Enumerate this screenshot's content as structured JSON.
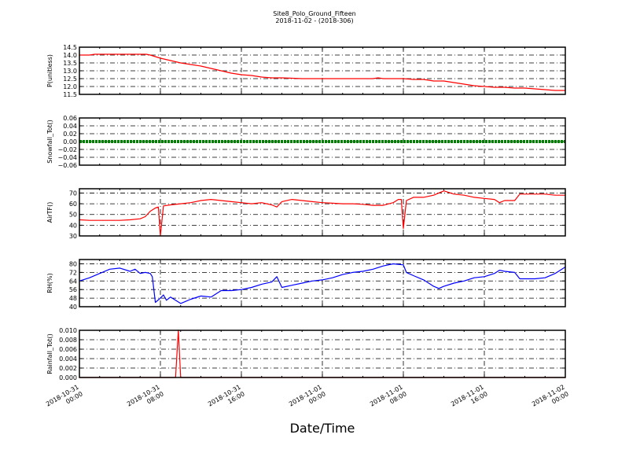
{
  "chart_data": {
    "type": "line",
    "title": "Site8_Polo_Ground_Fifteen",
    "subtitle": "2018-11-02 - (2018-306)",
    "xlabel": "Date/Time",
    "x_unit": "hours since 2018-10-31 00:00",
    "xlim": [
      0,
      48
    ],
    "x_ticks": [
      {
        "value": 0,
        "label": [
          "2018-10-31",
          "00:00"
        ]
      },
      {
        "value": 8,
        "label": [
          "2018-10-31",
          "08:00"
        ]
      },
      {
        "value": 16,
        "label": [
          "2018-10-31",
          "16:00"
        ]
      },
      {
        "value": 24,
        "label": [
          "2018-11-01",
          "00:00"
        ]
      },
      {
        "value": 32,
        "label": [
          "2018-11-01",
          "08:00"
        ]
      },
      {
        "value": 40,
        "label": [
          "2018-11-01",
          "16:00"
        ]
      },
      {
        "value": 48,
        "label": [
          "2018-11-02",
          "00:00"
        ]
      }
    ],
    "grid": true,
    "panels": [
      {
        "name": "p-unitless",
        "ylabel": "P(unitless)",
        "ylim": [
          11.5,
          14.5
        ],
        "yticks": [
          11.5,
          12.0,
          12.5,
          13.0,
          13.5,
          14.0,
          14.5
        ],
        "ytick_labels": [
          "11.5",
          "12.0",
          "12.5",
          "13.0",
          "13.5",
          "14.0",
          "14.5"
        ],
        "color": "#ff0000",
        "style": "line",
        "x": [
          0,
          1,
          1.5,
          2,
          4,
          6,
          6.6,
          7,
          8,
          9,
          10,
          11,
          12,
          13,
          14,
          15,
          16,
          17,
          18,
          19,
          20,
          22,
          24,
          26,
          28,
          29,
          29.5,
          30,
          32,
          33,
          34,
          35,
          36,
          37,
          38,
          39,
          40,
          41,
          42,
          43,
          44,
          45,
          46,
          47,
          48
        ],
        "y": [
          14.0,
          14.0,
          14.05,
          14.05,
          14.05,
          14.05,
          14.05,
          14.0,
          13.8,
          13.65,
          13.5,
          13.4,
          13.3,
          13.15,
          13.0,
          12.85,
          12.75,
          12.7,
          12.6,
          12.55,
          12.55,
          12.5,
          12.5,
          12.5,
          12.5,
          12.5,
          12.55,
          12.5,
          12.5,
          12.45,
          12.45,
          12.35,
          12.35,
          12.25,
          12.15,
          12.05,
          12.0,
          11.95,
          11.95,
          11.9,
          11.9,
          11.85,
          11.8,
          11.75,
          11.75
        ]
      },
      {
        "name": "snowfall-tot",
        "ylabel": "Snowfall_Tot()",
        "ylim": [
          -0.06,
          0.06
        ],
        "yticks": [
          -0.06,
          -0.04,
          -0.02,
          0.0,
          0.02,
          0.04,
          0.06
        ],
        "ytick_labels": [
          "−0.06",
          "−0.04",
          "−0.02",
          "0.00",
          "0.02",
          "0.04",
          "0.06"
        ],
        "color": "#008000",
        "style": "dotted-thick",
        "x": [
          0,
          48
        ],
        "y": [
          0,
          0
        ]
      },
      {
        "name": "airtf",
        "ylabel": "AirTF()",
        "ylim": [
          30,
          74
        ],
        "yticks": [
          30,
          40,
          50,
          60,
          70
        ],
        "ytick_labels": [
          "30",
          "40",
          "50",
          "60",
          "70"
        ],
        "color": "#ff0000",
        "style": "line",
        "x": [
          0,
          1,
          2,
          3,
          4,
          5,
          6,
          6.5,
          7,
          7.5,
          7.8,
          8,
          8.3,
          9,
          10,
          11,
          12,
          13,
          14,
          15,
          16,
          17,
          18,
          19,
          19.5,
          20,
          21,
          22,
          23,
          24,
          25,
          26,
          27,
          28,
          29,
          30,
          31,
          31.5,
          31.8,
          32,
          32.3,
          33,
          34,
          35,
          36,
          37,
          38,
          39,
          40,
          41,
          41.5,
          42,
          43,
          43.5,
          44,
          45,
          46,
          47,
          48
        ],
        "y": [
          45,
          44.5,
          44.5,
          44.5,
          44.5,
          45,
          46,
          48,
          53,
          56,
          57,
          30,
          58,
          59,
          60,
          61,
          63,
          64,
          63,
          62,
          61,
          60,
          61,
          59,
          57,
          62,
          64,
          63,
          62,
          61,
          60.5,
          60,
          60,
          59.5,
          58.5,
          58.5,
          61,
          64,
          64,
          37,
          63,
          66,
          66,
          68,
          72,
          69,
          68,
          66,
          65,
          64,
          61,
          63,
          63,
          69,
          69,
          69,
          69,
          68,
          68
        ]
      },
      {
        "name": "rh",
        "ylabel": "RH(%)",
        "ylim": [
          40,
          84
        ],
        "yticks": [
          40,
          48,
          56,
          64,
          72,
          80
        ],
        "ytick_labels": [
          "40",
          "48",
          "56",
          "64",
          "72",
          "80"
        ],
        "color": "#0000ff",
        "style": "line",
        "x": [
          0,
          1,
          2,
          3,
          4,
          5,
          5.5,
          6,
          6.5,
          7,
          7.2,
          7.5,
          8,
          8.3,
          8.6,
          9,
          10,
          11,
          12,
          13,
          14,
          15,
          16,
          17,
          18,
          19,
          19.5,
          20,
          21,
          22,
          23,
          24,
          25,
          26,
          27,
          28,
          29,
          30,
          31,
          32,
          32.3,
          33,
          34,
          35,
          35.5,
          36,
          37,
          38,
          39,
          40,
          41,
          41.5,
          42,
          43,
          43.5,
          44,
          45,
          46,
          47,
          48
        ],
        "y": [
          64,
          67,
          71,
          75,
          76,
          73,
          75,
          71,
          72,
          71,
          68,
          44,
          48,
          51,
          46,
          49,
          43,
          47,
          50,
          49,
          55,
          55,
          56,
          58,
          61,
          63,
          68,
          58,
          60,
          62,
          64,
          65,
          67,
          70,
          72,
          73,
          75,
          78,
          80,
          79,
          72,
          69,
          65,
          59,
          57,
          59,
          62,
          64,
          67,
          68,
          71,
          74,
          73,
          72,
          66,
          66,
          66,
          67,
          71,
          77
        ]
      },
      {
        "name": "rainfall-tot",
        "ylabel": "Rainfall_Tot()",
        "ylim": [
          0,
          0.01
        ],
        "yticks": [
          0,
          0.002,
          0.004,
          0.006,
          0.008,
          0.01
        ],
        "ytick_labels": [
          "0.000",
          "0.002",
          "0.004",
          "0.006",
          "0.008",
          "0.010"
        ],
        "color": "#ff0000",
        "style": "line",
        "x": [
          0,
          9.5,
          9.77,
          10.0,
          48
        ],
        "y": [
          0,
          0,
          0.01,
          0,
          0
        ]
      }
    ]
  }
}
